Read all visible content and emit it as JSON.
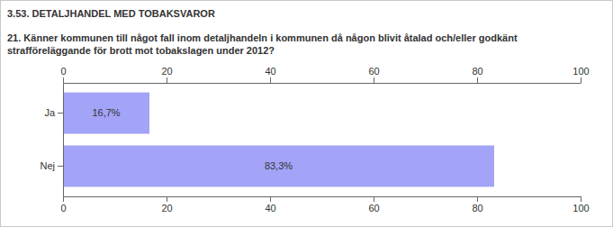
{
  "chart_data": {
    "type": "bar",
    "orientation": "horizontal",
    "title": "3.53. DETALJHANDEL MED TOBAKSVAROR",
    "subtitle": "21. Känner kommunen till något fall inom detaljhandeln i kommunen då någon blivit åtalad och/eller godkänt strafföreläggande för brott mot tobakslagen under 2012?",
    "categories": [
      "Ja",
      "Nej"
    ],
    "values": [
      16.7,
      83.3
    ],
    "value_labels": [
      "16,7%",
      "83,3%"
    ],
    "data_labels": true,
    "color": "#a3a3f7",
    "xlim": [
      0,
      100
    ],
    "xticks": [
      0,
      20,
      40,
      60,
      80,
      100
    ],
    "grid": false
  }
}
